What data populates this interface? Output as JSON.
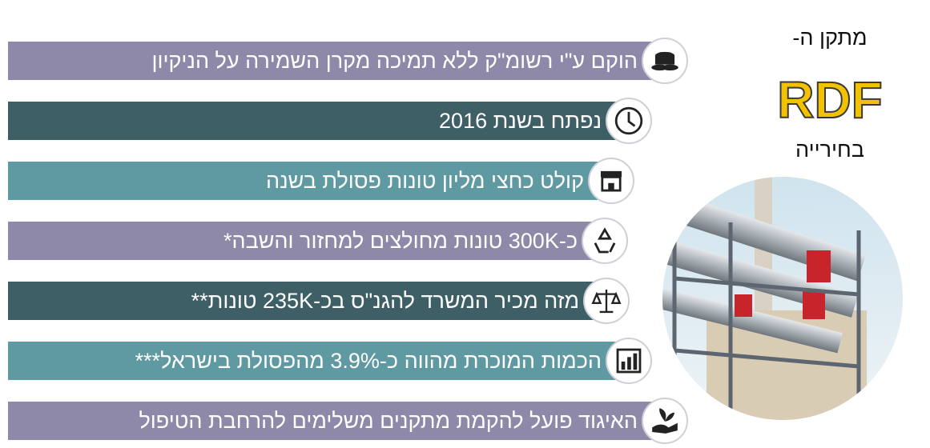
{
  "header": {
    "line1": "מתקן ה-",
    "acronym": "RDF",
    "line2": "בחירייה"
  },
  "items": [
    {
      "text": "הוקם ע\"י רשומ\"ק ללא תמיכה מקרן השמירה על הניקיון"
    },
    {
      "text": "נפתח בשנת 2016"
    },
    {
      "text": "קולט כחצי מליון טונות פסולת בשנה"
    },
    {
      "text": "כ-300K טונות מחולצים למחזור והשבה*"
    },
    {
      "text": "מזה מכיר המשרד להגנ\"ס בכ-235K טונות**"
    },
    {
      "text": "הכמות המוכרת מהווה כ-3.9% מהפסולת בישראל***"
    },
    {
      "text": "האיגוד פועל להקמת מתקנים משלימים להרחבת הטיפול"
    }
  ]
}
